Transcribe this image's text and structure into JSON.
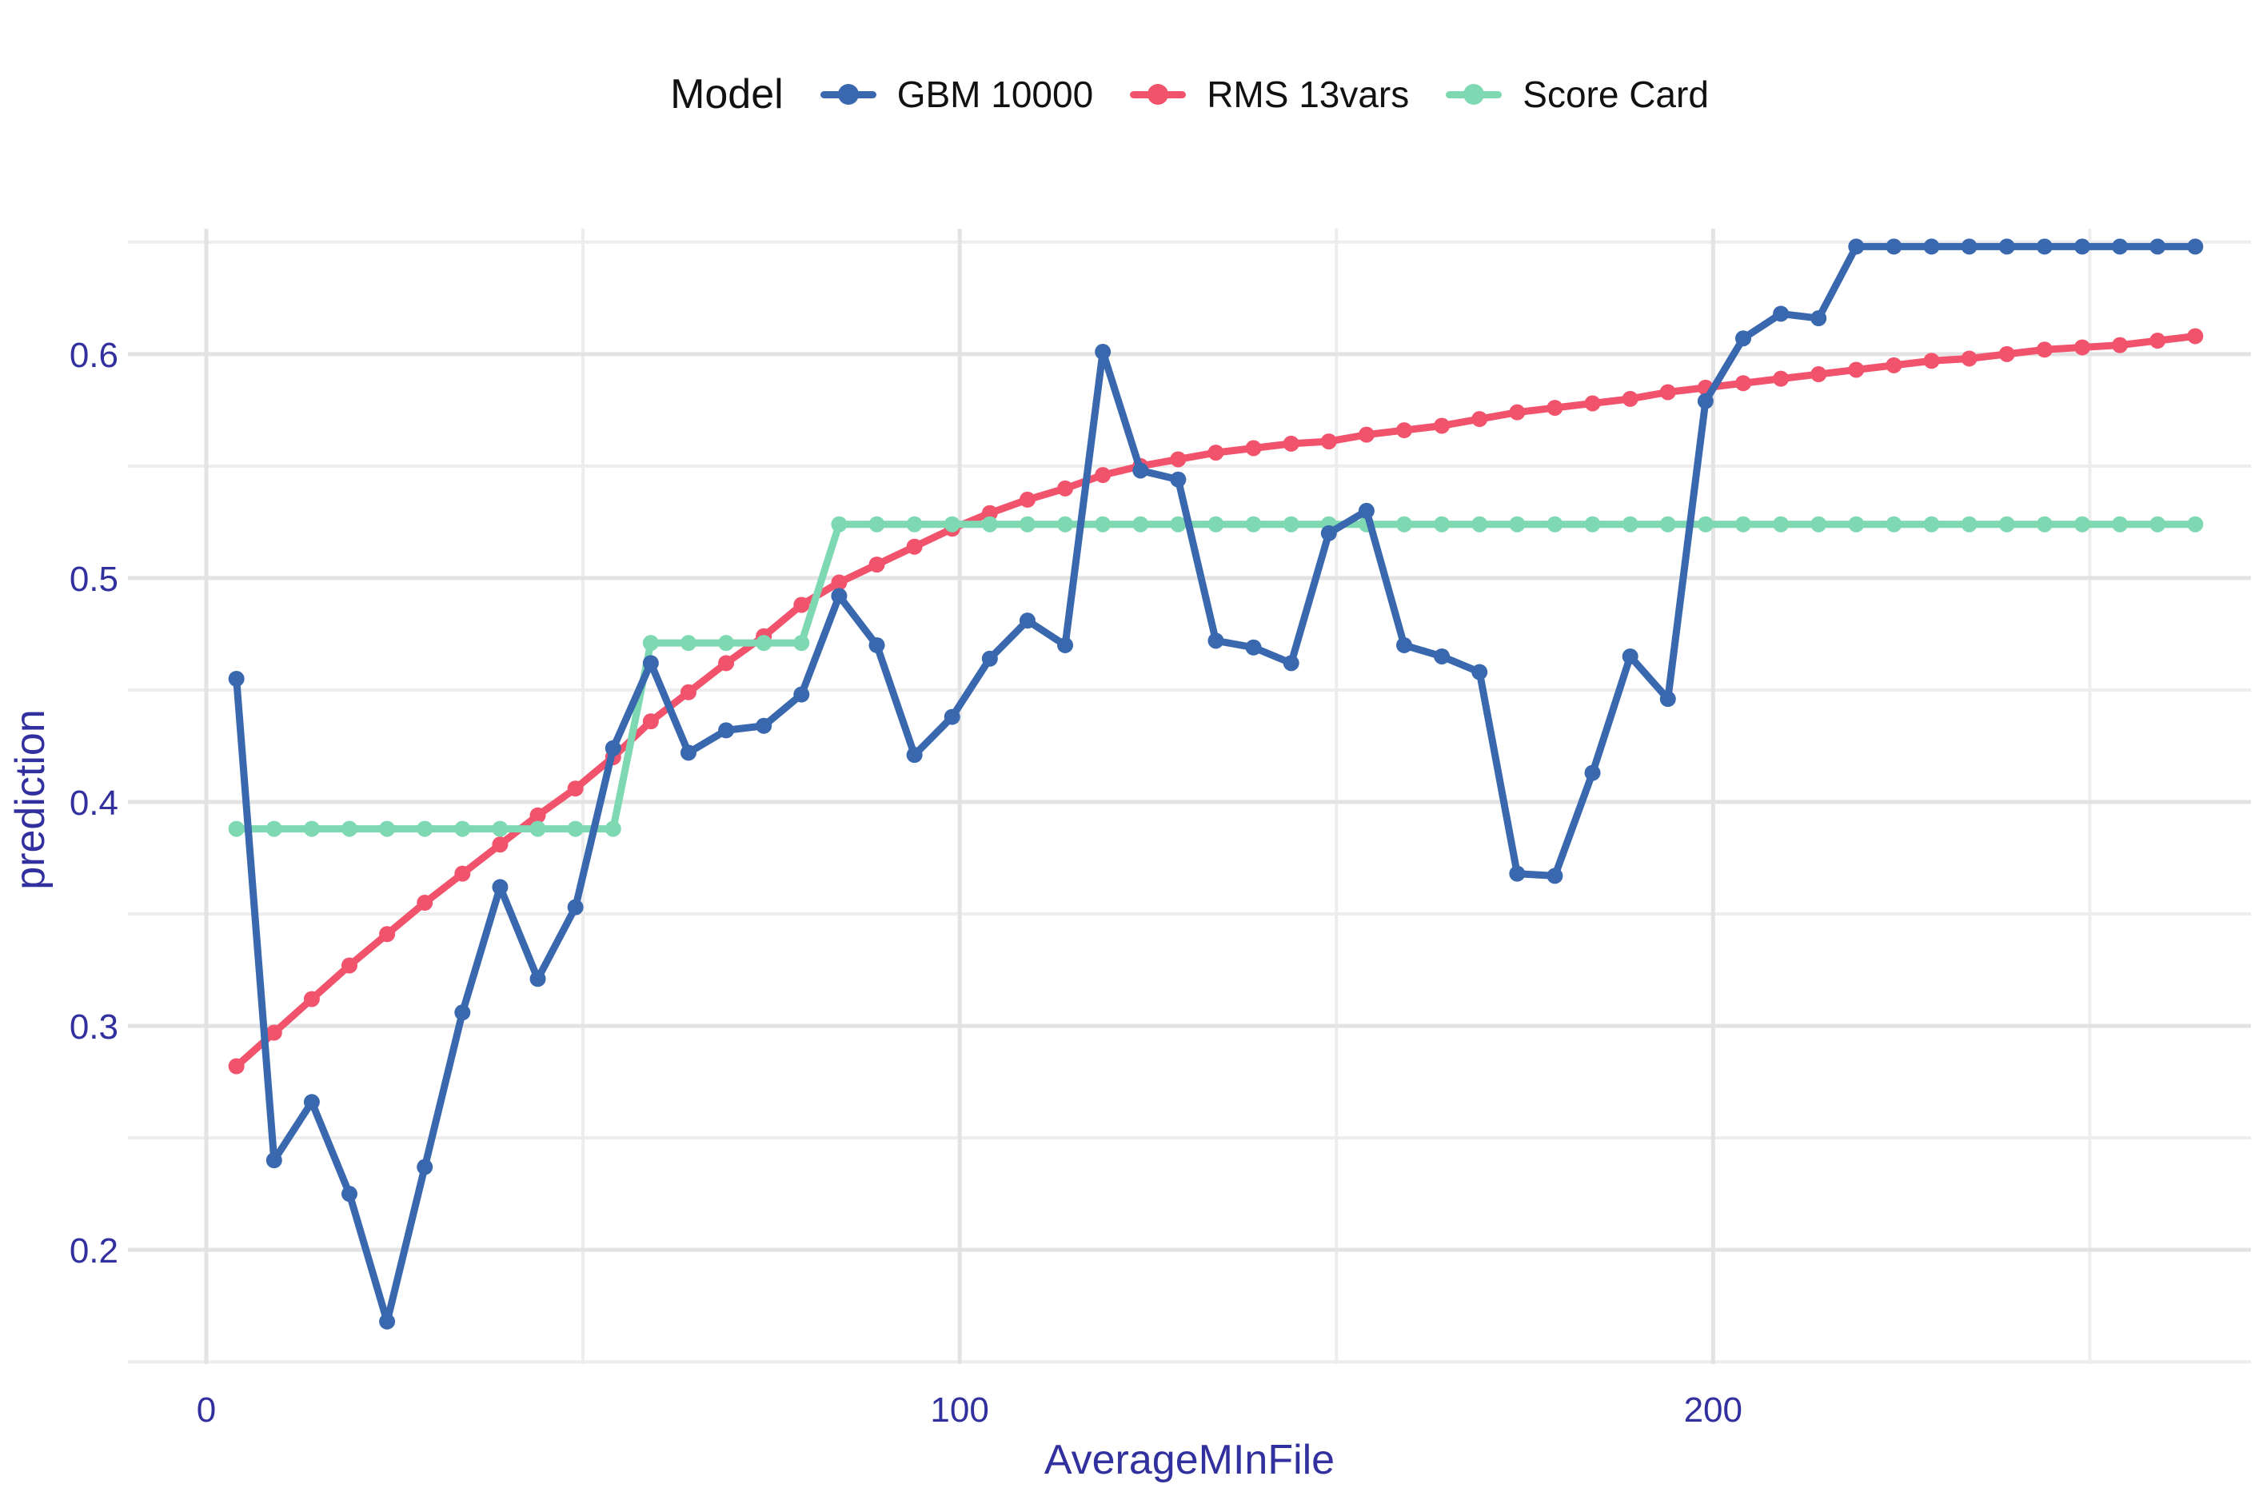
{
  "legend": {
    "title": "Model"
  },
  "axes": {
    "x_label": "AverageMInFile",
    "y_label": "prediction",
    "x_ticks": [
      {
        "v": 0,
        "label": "0"
      },
      {
        "v": 100,
        "label": "100"
      },
      {
        "v": 200,
        "label": "200"
      }
    ],
    "x_minor": [
      50,
      150,
      250
    ],
    "y_ticks": [
      {
        "v": 0.2,
        "label": "0.2"
      },
      {
        "v": 0.3,
        "label": "0.3"
      },
      {
        "v": 0.4,
        "label": "0.4"
      },
      {
        "v": 0.5,
        "label": "0.5"
      },
      {
        "v": 0.6,
        "label": "0.6"
      }
    ],
    "y_minor": [
      0.15,
      0.25,
      0.35,
      0.45,
      0.55,
      0.65
    ]
  },
  "colors": {
    "axis_text": "#31309e",
    "legend_text": "#111111",
    "grid_major": "#e3e3e3",
    "grid_minor": "#ededed",
    "background": "#ffffff"
  },
  "chart_data": {
    "type": "line",
    "title": "",
    "xlabel": "AverageMInFile",
    "ylabel": "prediction",
    "legend_title": "Model",
    "legend_position": "top",
    "grid": true,
    "xlim": [
      -10.4,
      271.4
    ],
    "ylim": [
      0.149,
      0.656
    ],
    "x": [
      4,
      9,
      14,
      19,
      24,
      29,
      34,
      39,
      44,
      49,
      54,
      59,
      64,
      69,
      74,
      79,
      84,
      89,
      94,
      99,
      104,
      109,
      114,
      119,
      124,
      129,
      134,
      139,
      144,
      149,
      154,
      159,
      164,
      169,
      174,
      179,
      184,
      189,
      194,
      199,
      204,
      209,
      214,
      219,
      224,
      229,
      234,
      239,
      244,
      249,
      254,
      259,
      264
    ],
    "series": [
      {
        "name": "GBM 10000",
        "color": "#3a68ae",
        "marker": true,
        "values": [
          0.455,
          0.24,
          0.266,
          0.225,
          0.168,
          0.237,
          0.306,
          0.362,
          0.321,
          0.353,
          0.424,
          0.462,
          0.422,
          0.432,
          0.434,
          0.448,
          0.492,
          0.47,
          0.421,
          0.438,
          0.464,
          0.481,
          0.47,
          0.601,
          0.548,
          0.544,
          0.472,
          0.469,
          0.462,
          0.52,
          0.53,
          0.47,
          0.465,
          0.458,
          0.368,
          0.367,
          0.413,
          0.465,
          0.446,
          0.579,
          0.607,
          0.618,
          0.616,
          0.648,
          0.648,
          0.648,
          0.648,
          0.648,
          0.648,
          0.648,
          0.648,
          0.648,
          0.648
        ]
      },
      {
        "name": "RMS 13vars",
        "color": "#f1536d",
        "marker": true,
        "values": [
          0.282,
          0.297,
          0.312,
          0.327,
          0.341,
          0.355,
          0.368,
          0.381,
          0.394,
          0.406,
          0.42,
          0.436,
          0.449,
          0.462,
          0.474,
          0.488,
          0.498,
          0.506,
          0.514,
          0.522,
          0.529,
          0.535,
          0.54,
          0.546,
          0.55,
          0.553,
          0.556,
          0.558,
          0.56,
          0.561,
          0.564,
          0.566,
          0.568,
          0.571,
          0.574,
          0.576,
          0.578,
          0.58,
          0.583,
          0.585,
          0.587,
          0.589,
          0.591,
          0.593,
          0.595,
          0.597,
          0.598,
          0.6,
          0.602,
          0.603,
          0.604,
          0.606,
          0.608
        ]
      },
      {
        "name": "Score Card",
        "color": "#7ed8b1",
        "marker": true,
        "values": [
          0.388,
          0.388,
          0.388,
          0.388,
          0.388,
          0.388,
          0.388,
          0.388,
          0.388,
          0.388,
          0.388,
          0.471,
          0.471,
          0.471,
          0.471,
          0.471,
          0.524,
          0.524,
          0.524,
          0.524,
          0.524,
          0.524,
          0.524,
          0.524,
          0.524,
          0.524,
          0.524,
          0.524,
          0.524,
          0.524,
          0.524,
          0.524,
          0.524,
          0.524,
          0.524,
          0.524,
          0.524,
          0.524,
          0.524,
          0.524,
          0.524,
          0.524,
          0.524,
          0.524,
          0.524,
          0.524,
          0.524,
          0.524,
          0.524,
          0.524,
          0.524,
          0.524,
          0.524
        ]
      }
    ]
  }
}
